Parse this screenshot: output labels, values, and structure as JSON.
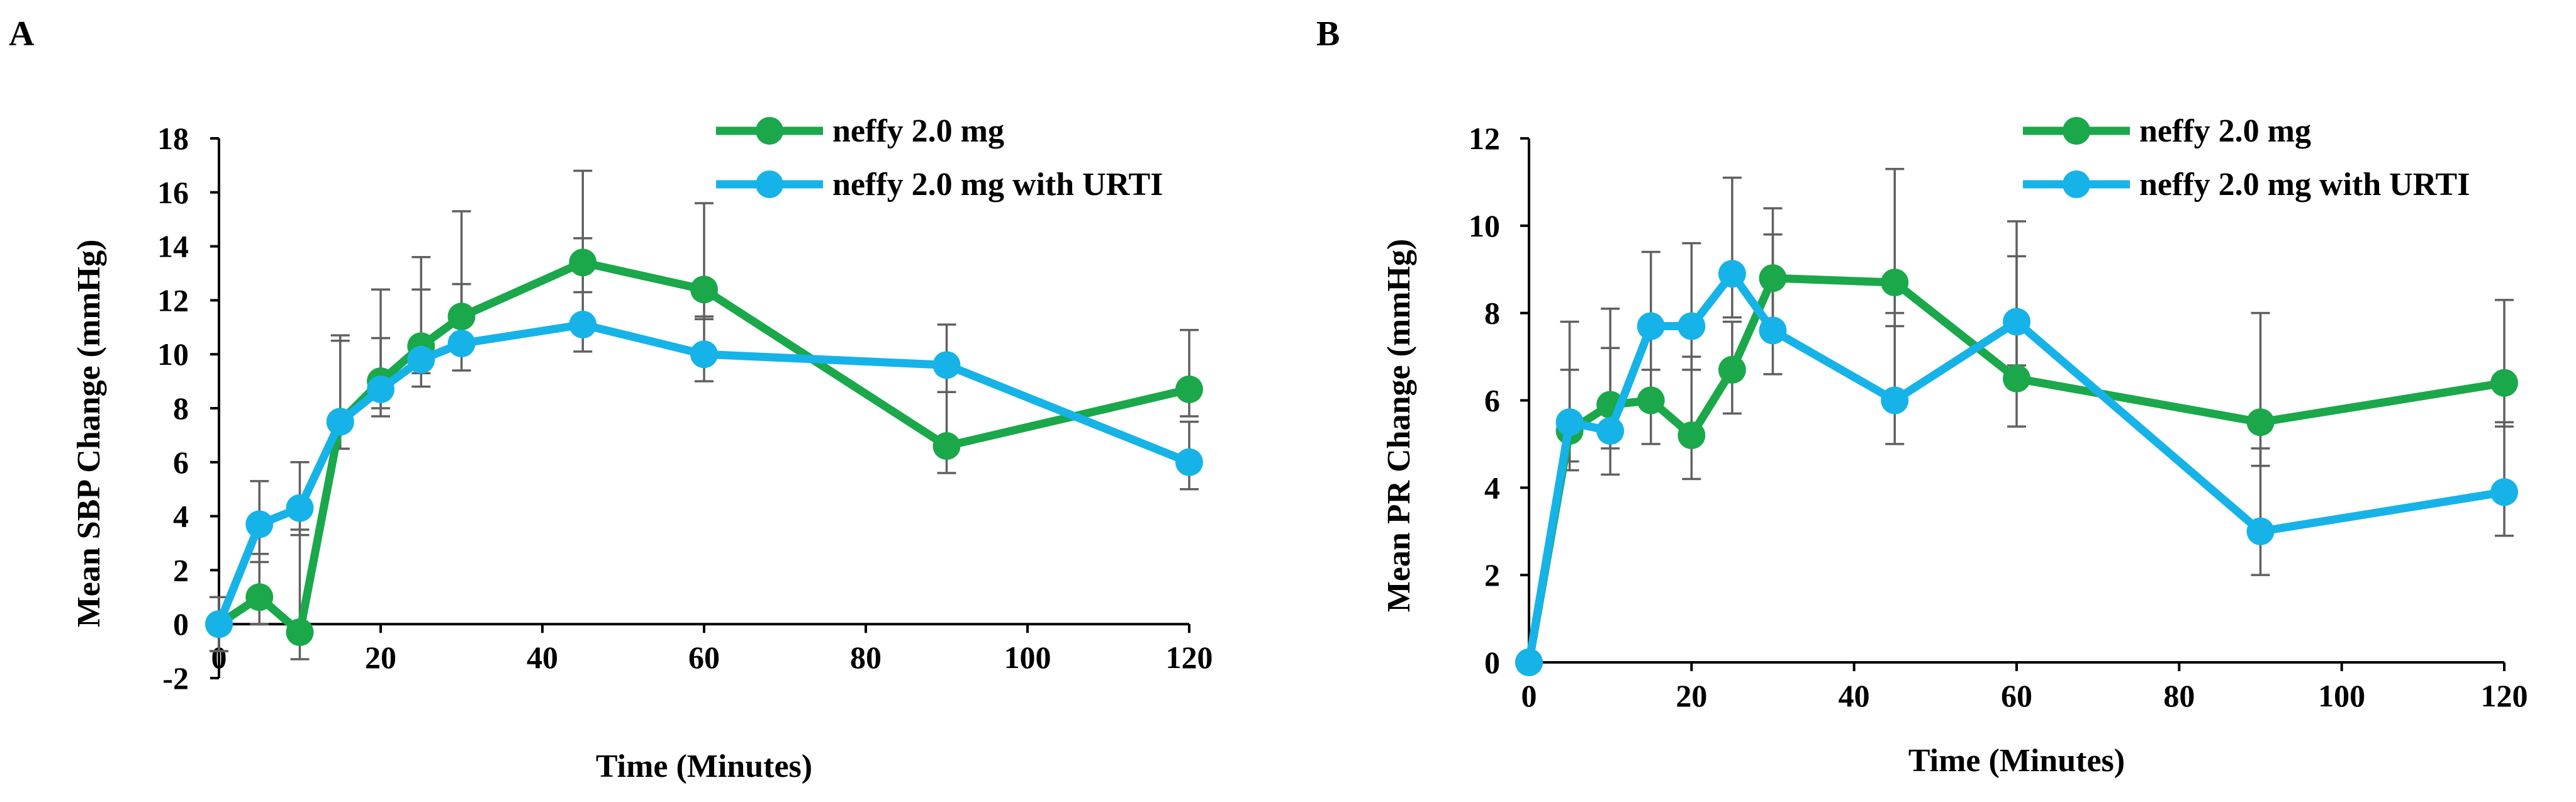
{
  "figure": {
    "panel_a_label": "A",
    "panel_b_label": "B"
  },
  "chart_data": [
    {
      "panel": "A",
      "type": "line",
      "title": "",
      "xlabel": "Time (Minutes)",
      "ylabel": "Mean SBP Change (mmHg)",
      "xlim": [
        0,
        120
      ],
      "ylim": [
        -2,
        18
      ],
      "xticks": [
        0,
        20,
        40,
        60,
        80,
        100,
        120
      ],
      "yticks": [
        -2,
        0,
        2,
        4,
        6,
        8,
        10,
        12,
        14,
        16,
        18
      ],
      "legend_position": "top-right",
      "series": [
        {
          "name": "neffy 2.0 mg",
          "color": "#1aa84a",
          "x": [
            0,
            5,
            10,
            15,
            20,
            25,
            30,
            45,
            60,
            90,
            120
          ],
          "values": [
            0,
            1.0,
            -0.3,
            7.5,
            9.0,
            10.3,
            11.4,
            13.4,
            12.4,
            6.6,
            8.7
          ],
          "err_upper": [
            1.0,
            2.6,
            3.5,
            10.7,
            12.4,
            13.6,
            15.3,
            16.8,
            15.6,
            8.6,
            10.9
          ],
          "err_lower": [
            -1.0,
            0.0,
            -1.3,
            6.5,
            8.0,
            9.3,
            10.4,
            12.3,
            11.3,
            5.6,
            7.7
          ]
        },
        {
          "name": "neffy 2.0 mg with URTI",
          "color": "#16b3e8",
          "x": [
            0,
            5,
            10,
            15,
            20,
            25,
            30,
            45,
            60,
            90,
            120
          ],
          "values": [
            0,
            3.7,
            4.3,
            7.5,
            8.7,
            9.8,
            10.4,
            11.1,
            10.0,
            9.6,
            6.0
          ],
          "err_upper": [
            1.0,
            5.3,
            6.0,
            10.5,
            10.6,
            12.4,
            12.6,
            14.3,
            11.4,
            11.1,
            7.5
          ],
          "err_lower": [
            -1.0,
            2.3,
            3.3,
            6.5,
            7.7,
            8.8,
            9.4,
            10.1,
            9.0,
            8.6,
            5.0
          ]
        }
      ]
    },
    {
      "panel": "B",
      "type": "line",
      "title": "",
      "xlabel": "Time (Minutes)",
      "ylabel": "Mean PR Change (mmHg)",
      "xlim": [
        0,
        120
      ],
      "ylim": [
        0,
        12
      ],
      "xticks": [
        0,
        20,
        40,
        60,
        80,
        100,
        120
      ],
      "yticks": [
        0,
        2,
        4,
        6,
        8,
        10,
        12
      ],
      "legend_position": "top-right",
      "series": [
        {
          "name": "neffy 2.0 mg",
          "color": "#1aa84a",
          "x": [
            0,
            5,
            10,
            15,
            20,
            25,
            30,
            45,
            60,
            90,
            120
          ],
          "values": [
            0,
            5.3,
            5.9,
            6.0,
            5.2,
            6.7,
            8.8,
            8.7,
            6.5,
            5.5,
            6.4
          ],
          "err_upper": [
            0,
            6.7,
            7.2,
            7.6,
            7.0,
            7.8,
            10.4,
            11.3,
            9.3,
            8.0,
            8.3
          ],
          "err_lower": [
            0,
            4.6,
            4.9,
            5.0,
            4.2,
            5.7,
            7.8,
            7.7,
            5.4,
            4.5,
            5.4
          ]
        },
        {
          "name": "neffy 2.0 mg with URTI",
          "color": "#16b3e8",
          "x": [
            0,
            5,
            10,
            15,
            20,
            25,
            30,
            45,
            60,
            90,
            120
          ],
          "values": [
            0,
            5.5,
            5.3,
            7.7,
            7.7,
            8.9,
            7.6,
            6.0,
            7.8,
            3.0,
            3.9
          ],
          "err_upper": [
            0,
            7.8,
            8.1,
            9.4,
            9.6,
            11.1,
            9.8,
            8.0,
            10.1,
            4.9,
            5.5
          ],
          "err_lower": [
            0,
            4.4,
            4.3,
            6.7,
            6.7,
            7.9,
            6.6,
            5.0,
            6.8,
            2.0,
            2.9
          ]
        }
      ]
    }
  ]
}
